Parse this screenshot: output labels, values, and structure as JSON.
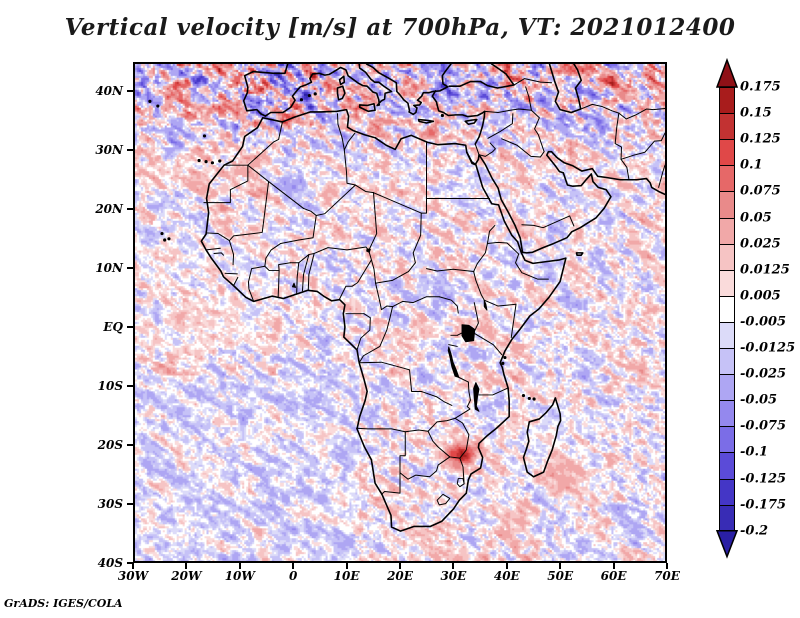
{
  "title": "Vertical velocity [m/s] at 700hPa, VT: 2021012400",
  "attribution": "GrADS: IGES/COLA",
  "chart_data": {
    "type": "heatmap",
    "title": "Vertical velocity [m/s] at 700hPa, VT: 2021012400",
    "variable": "Vertical velocity",
    "units": "m/s",
    "pressure_level": "700hPa",
    "valid_time": "2021012400",
    "projection": "latlon",
    "lon_range_deg": [
      -30,
      70
    ],
    "lat_range_deg": [
      -40,
      45
    ],
    "x_tick_labels": [
      "30W",
      "20W",
      "10W",
      "0",
      "10E",
      "20E",
      "30E",
      "40E",
      "50E",
      "60E",
      "70E"
    ],
    "y_tick_labels": [
      "40N",
      "30N",
      "20N",
      "10N",
      "EQ",
      "10S",
      "20S",
      "30S",
      "40S"
    ],
    "grid": false,
    "legend_position": "right",
    "colorbar": {
      "orientation": "vertical",
      "boundary_labels": [
        "0.175",
        "0.15",
        "0.125",
        "0.1",
        "0.075",
        "0.05",
        "0.025",
        "0.0125",
        "0.005",
        "-0.005",
        "-0.0125",
        "-0.025",
        "-0.05",
        "-0.075",
        "-0.1",
        "-0.125",
        "-0.175",
        "-0.2"
      ],
      "boundary_values": [
        0.175,
        0.15,
        0.125,
        0.1,
        0.075,
        0.05,
        0.025,
        0.0125,
        0.005,
        -0.005,
        -0.0125,
        -0.025,
        -0.05,
        -0.075,
        -0.1,
        -0.125,
        -0.175,
        -0.2
      ],
      "colors_top_to_bottom": [
        "#8f1117",
        "#a81c1c",
        "#c23232",
        "#e04848",
        "#e66868",
        "#e98a8a",
        "#f1a8a8",
        "#f6c4c4",
        "#fadbdb",
        "#ffffff",
        "#dcdbf9",
        "#c6c2f7",
        "#aea6f3",
        "#9488ee",
        "#7b6de7",
        "#5b4bd8",
        "#4436c6",
        "#382cb5",
        "#2a1fa4"
      ],
      "arrow_top": true,
      "arrow_bottom": true
    },
    "field_summary": "Fine-grained mottled field of upward (red) and downward (blue) vertical velocity over Africa and adjacent oceans; strongest mixed activity over Iberia and the Mediterranean, an intense red maximum near 31E 21S, and smooth lavender streaks over the southern oceans."
  }
}
